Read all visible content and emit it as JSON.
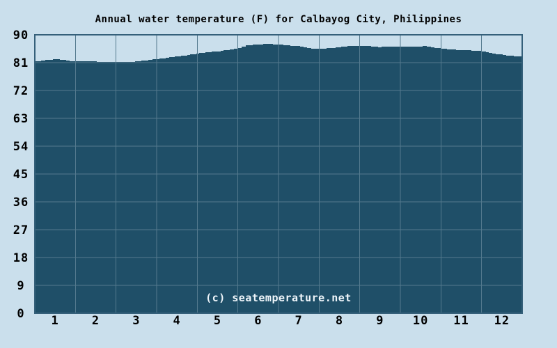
{
  "title": "Annual water temperature (F) for Calbayog City, Philippines",
  "watermark": "(c) seatemperature.net",
  "colors": {
    "background": "#cadfec",
    "area_fill": "#1f4f68",
    "grid_line": "#547a8e",
    "plot_border": "#35607a",
    "text": "#000000",
    "watermark_text": "#eef5fa"
  },
  "chart_data": {
    "type": "area",
    "title": "Annual water temperature (F) for Calbayog City, Philippines",
    "series_name": "Water temperature (F)",
    "xlabel": "",
    "ylabel": "",
    "categories": [
      "1",
      "2",
      "3",
      "4",
      "5",
      "6",
      "7",
      "8",
      "9",
      "10",
      "11",
      "12"
    ],
    "values": [
      82.0,
      81.4,
      81.3,
      83.0,
      84.9,
      86.9,
      86.0,
      86.1,
      86.1,
      86.0,
      85.1,
      83.5
    ],
    "ylim": [
      0,
      90
    ],
    "yticks": [
      0,
      9,
      18,
      27,
      36,
      45,
      54,
      63,
      72,
      81,
      90
    ],
    "grid": true,
    "legend": "none",
    "annotation": "(c) seatemperature.net",
    "profile": [
      [
        0.0,
        81.4
      ],
      [
        0.15,
        81.7
      ],
      [
        0.35,
        82.0
      ],
      [
        0.55,
        82.1
      ],
      [
        0.7,
        81.8
      ],
      [
        0.85,
        81.5
      ],
      [
        1.2,
        81.4
      ],
      [
        1.6,
        81.3
      ],
      [
        2.0,
        81.2
      ],
      [
        2.4,
        81.3
      ],
      [
        2.7,
        81.7
      ],
      [
        3.0,
        82.2
      ],
      [
        3.3,
        82.7
      ],
      [
        3.6,
        83.2
      ],
      [
        3.9,
        83.8
      ],
      [
        4.2,
        84.3
      ],
      [
        4.5,
        84.7
      ],
      [
        4.8,
        85.2
      ],
      [
        5.0,
        85.8
      ],
      [
        5.2,
        86.6
      ],
      [
        5.45,
        86.9
      ],
      [
        5.7,
        87.0
      ],
      [
        5.95,
        86.9
      ],
      [
        6.2,
        86.6
      ],
      [
        6.45,
        86.3
      ],
      [
        6.7,
        85.7
      ],
      [
        6.9,
        85.4
      ],
      [
        7.1,
        85.6
      ],
      [
        7.4,
        85.9
      ],
      [
        7.7,
        86.4
      ],
      [
        7.95,
        86.5
      ],
      [
        8.2,
        86.3
      ],
      [
        8.45,
        86.0
      ],
      [
        8.7,
        86.2
      ],
      [
        9.0,
        86.1
      ],
      [
        9.3,
        86.2
      ],
      [
        9.55,
        86.3
      ],
      [
        9.75,
        85.9
      ],
      [
        10.0,
        85.5
      ],
      [
        10.3,
        85.2
      ],
      [
        10.6,
        85.0
      ],
      [
        10.9,
        84.8
      ],
      [
        11.1,
        84.3
      ],
      [
        11.35,
        83.8
      ],
      [
        11.6,
        83.3
      ],
      [
        11.8,
        83.0
      ],
      [
        11.92,
        83.1
      ],
      [
        12.0,
        83.1
      ]
    ]
  }
}
